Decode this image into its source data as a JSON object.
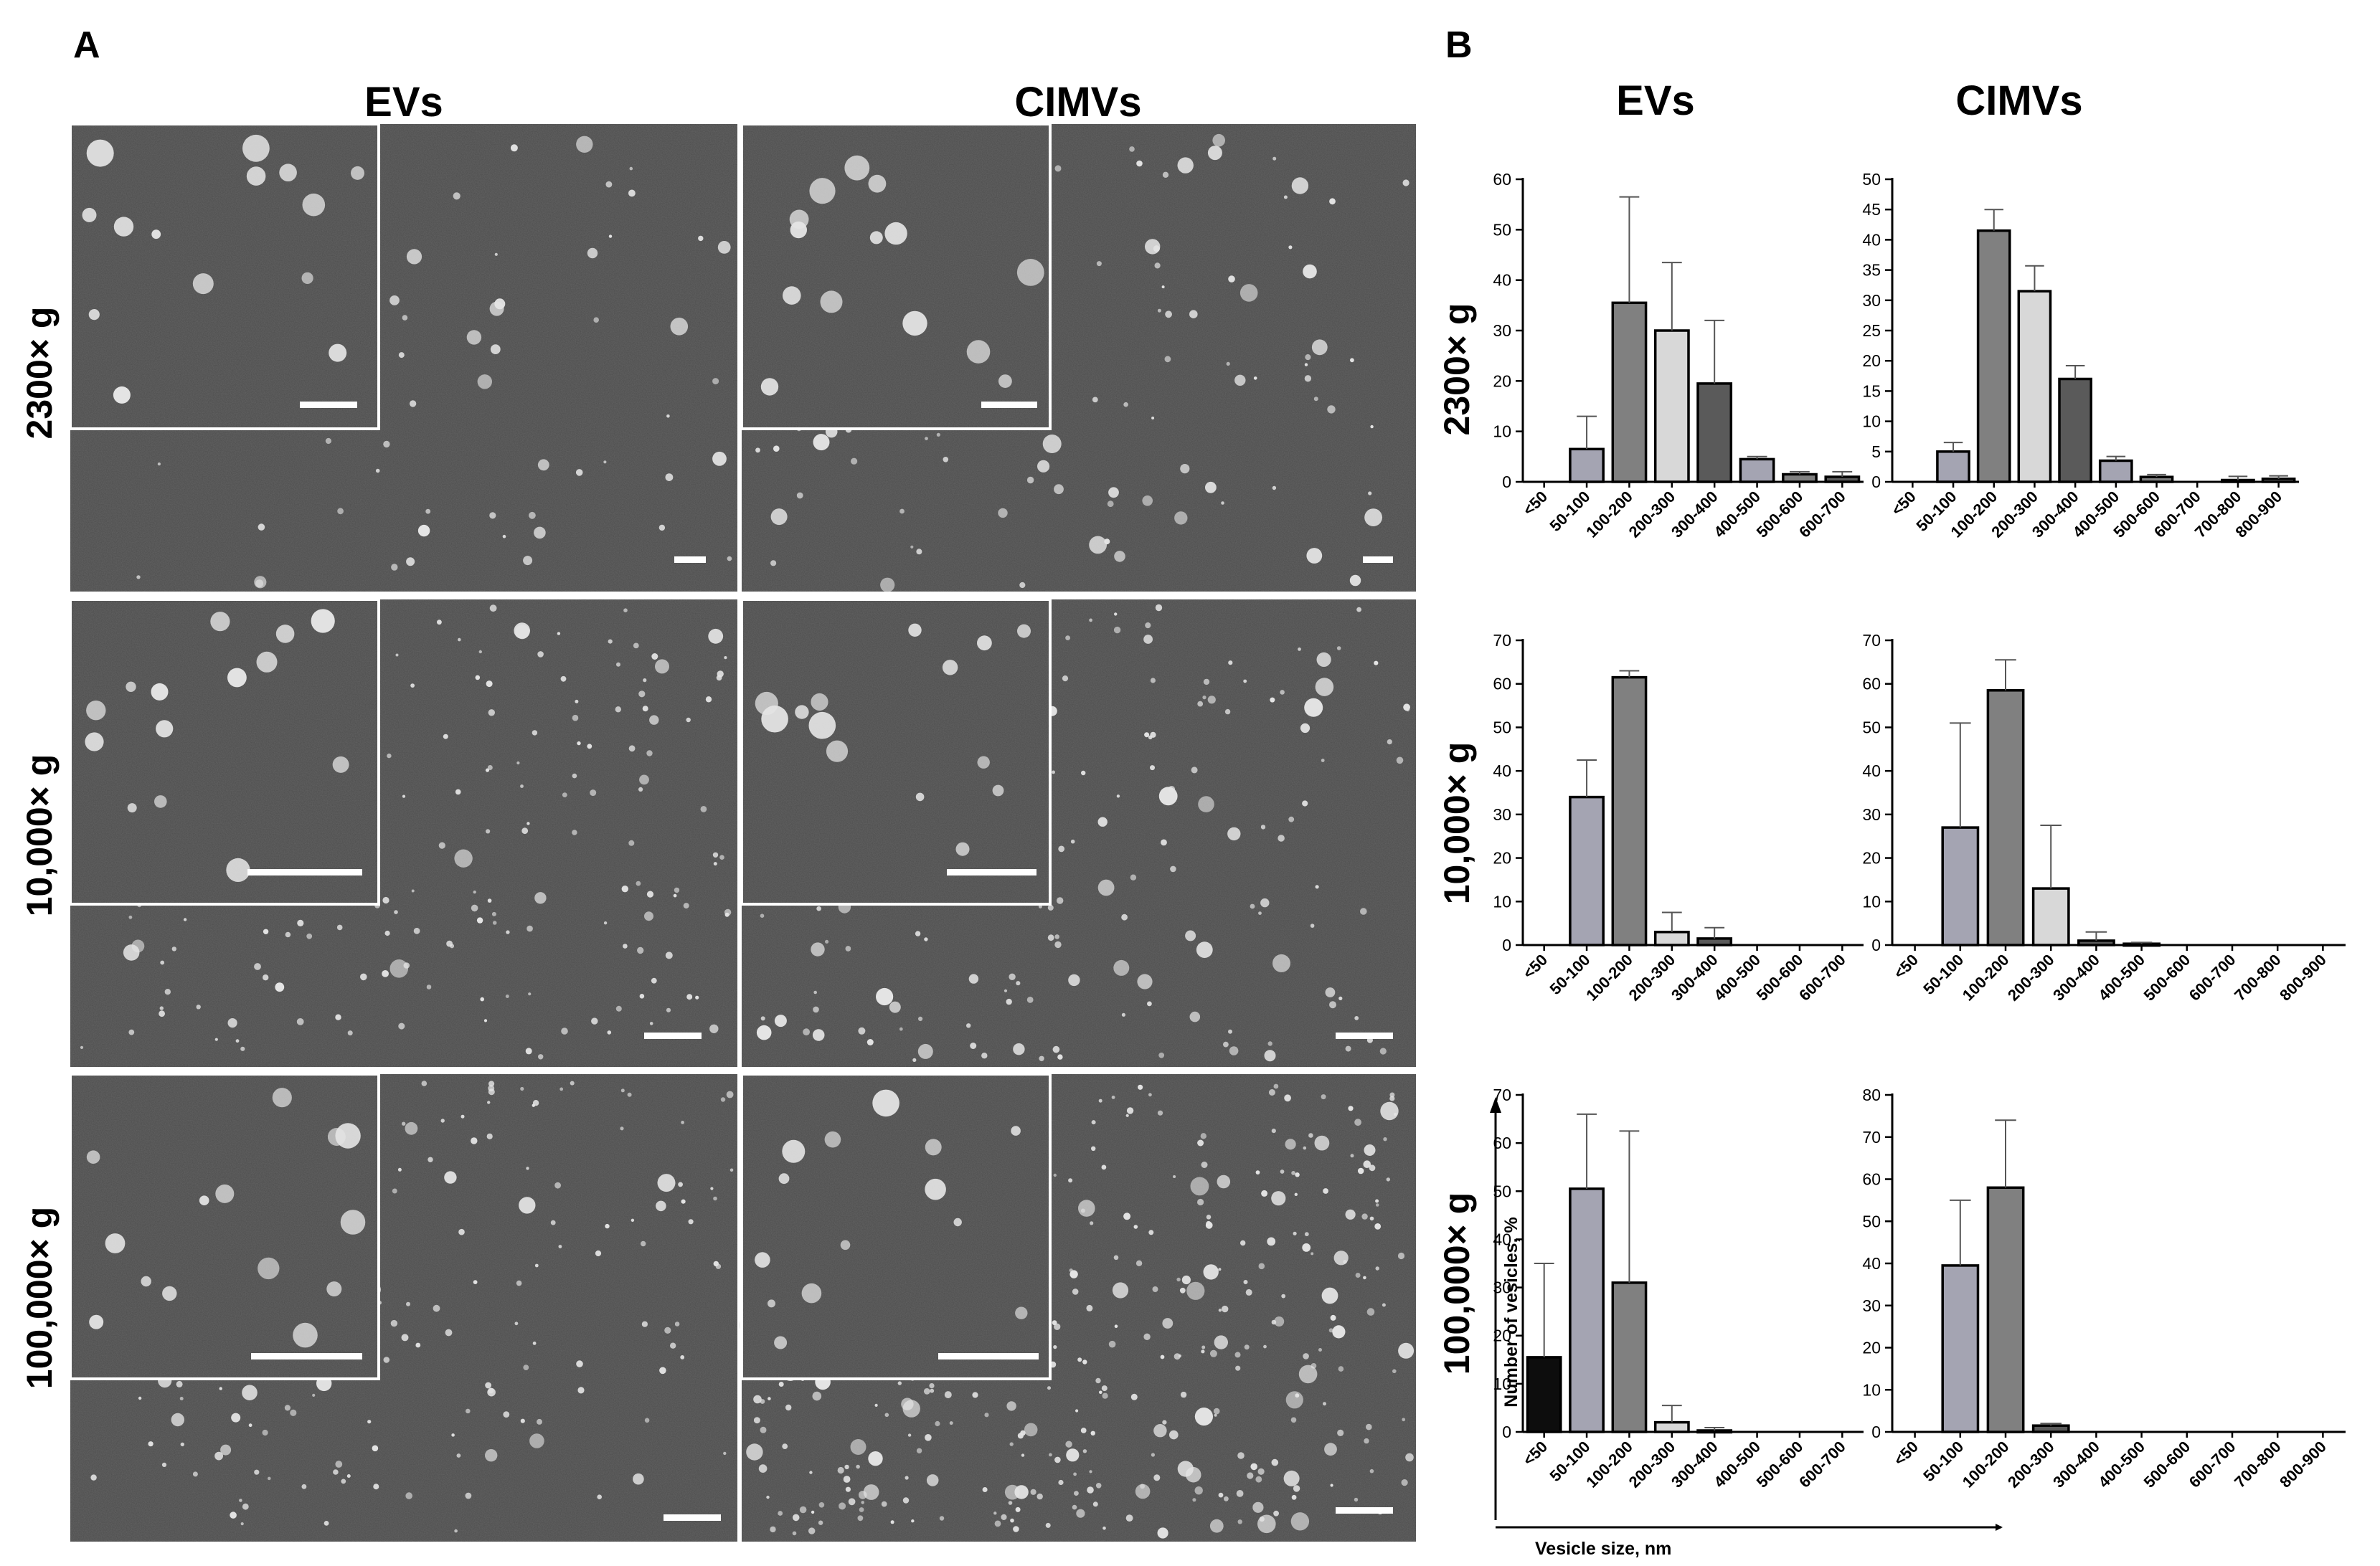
{
  "panel_letters": {
    "a": "A",
    "b": "B"
  },
  "columns": {
    "evs": "EVs",
    "cimvs": "CIMVs"
  },
  "rows": [
    "2300× g",
    "10,000× g",
    "100,000× g"
  ],
  "axis_titles": {
    "y": "Number of vesicles, %",
    "x": "Vesicle size, nm"
  },
  "colors": {
    "background": "#ffffff",
    "micrograph": "#4c4c4c",
    "particle": "#e4e4e4",
    "inset_frame": "#ffffff",
    "bar_stroke": "#000000",
    "bar_black": "#0d0d0d",
    "bar_dark": "#5a5a5a",
    "bar_mid": "#808080",
    "bar_lavender": "#a4a4b2",
    "bar_light": "#d8d8d8"
  },
  "micrographs": [
    {
      "row": "2300× g",
      "column": "EVs"
    },
    {
      "row": "2300× g",
      "column": "CIMVs"
    },
    {
      "row": "10,000× g",
      "column": "EVs"
    },
    {
      "row": "10,000× g",
      "column": "CIMVs"
    },
    {
      "row": "100,000× g",
      "column": "EVs"
    },
    {
      "row": "100,000× g",
      "column": "CIMVs"
    }
  ],
  "chart_data": [
    {
      "type": "bar",
      "row": "2300× g",
      "column": "EVs",
      "ylim": [
        0,
        60
      ],
      "yticks": [
        0,
        10,
        20,
        30,
        40,
        50,
        60
      ],
      "categories": [
        "<50",
        "50-100",
        "100-200",
        "200-300",
        "300-400",
        "400-500",
        "500-600",
        "600-700"
      ],
      "values": [
        0,
        6.5,
        35.5,
        30,
        19.5,
        4.5,
        1.5,
        1
      ],
      "errors": [
        0,
        6.5,
        21,
        13.5,
        12.5,
        0.5,
        0.5,
        1
      ],
      "colors": [
        "bar_mid",
        "bar_lavender",
        "bar_mid",
        "bar_light",
        "bar_dark",
        "bar_lavender",
        "bar_mid",
        "bar_dark"
      ],
      "grid": false
    },
    {
      "type": "bar",
      "row": "2300× g",
      "column": "CIMVs",
      "ylim": [
        0,
        50
      ],
      "yticks": [
        0,
        5,
        10,
        15,
        20,
        25,
        30,
        35,
        40,
        45,
        50
      ],
      "categories": [
        "<50",
        "50-100",
        "100-200",
        "200-300",
        "300-400",
        "400-500",
        "500-600",
        "600-700",
        "700-800",
        "800-900"
      ],
      "values": [
        0,
        5,
        41.5,
        31.5,
        17,
        3.5,
        0.8,
        0,
        0.3,
        0.5
      ],
      "errors": [
        0,
        1.5,
        3.5,
        4.2,
        2.2,
        0.7,
        0.4,
        0,
        0.6,
        0.5
      ],
      "colors": [
        "bar_mid",
        "bar_lavender",
        "bar_mid",
        "bar_light",
        "bar_dark",
        "bar_lavender",
        "bar_mid",
        "bar_dark",
        "bar_mid",
        "bar_mid"
      ],
      "grid": false
    },
    {
      "type": "bar",
      "row": "10,000× g",
      "column": "EVs",
      "ylim": [
        0,
        70
      ],
      "yticks": [
        0,
        10,
        20,
        30,
        40,
        50,
        60,
        70
      ],
      "categories": [
        "<50",
        "50-100",
        "100-200",
        "200-300",
        "300-400",
        "400-500",
        "500-600",
        "600-700"
      ],
      "values": [
        0,
        34,
        61.5,
        3,
        1.5,
        0,
        0,
        0
      ],
      "errors": [
        0,
        8.5,
        1.5,
        4.5,
        2.5,
        0,
        0,
        0
      ],
      "colors": [
        "bar_mid",
        "bar_lavender",
        "bar_mid",
        "bar_light",
        "bar_dark",
        "bar_lavender",
        "bar_mid",
        "bar_dark"
      ],
      "grid": false
    },
    {
      "type": "bar",
      "row": "10,000× g",
      "column": "CIMVs",
      "ylim": [
        0,
        70
      ],
      "yticks": [
        0,
        10,
        20,
        30,
        40,
        50,
        60,
        70
      ],
      "categories": [
        "<50",
        "50-100",
        "100-200",
        "200-300",
        "300-400",
        "400-500",
        "500-600",
        "600-700",
        "700-800",
        "800-900"
      ],
      "values": [
        0,
        27,
        58.5,
        13,
        1,
        0.3,
        0,
        0,
        0,
        0
      ],
      "errors": [
        0,
        24,
        7,
        14.5,
        2,
        0.3,
        0,
        0,
        0,
        0
      ],
      "colors": [
        "bar_mid",
        "bar_lavender",
        "bar_mid",
        "bar_light",
        "bar_dark",
        "bar_lavender",
        "bar_mid",
        "bar_dark",
        "bar_mid",
        "bar_mid"
      ],
      "grid": false
    },
    {
      "type": "bar",
      "row": "100,000× g",
      "column": "EVs",
      "ylim": [
        0,
        70
      ],
      "yticks": [
        0,
        10,
        20,
        30,
        40,
        50,
        60,
        70
      ],
      "categories": [
        "<50",
        "50-100",
        "100-200",
        "200-300",
        "300-400",
        "400-500",
        "500-600",
        "600-700"
      ],
      "values": [
        15.5,
        50.5,
        31,
        2,
        0.3,
        0,
        0,
        0
      ],
      "errors": [
        19.5,
        15.5,
        31.5,
        3.5,
        0.6,
        0,
        0,
        0
      ],
      "colors": [
        "bar_black",
        "bar_lavender",
        "bar_mid",
        "bar_light",
        "bar_dark",
        "bar_lavender",
        "bar_mid",
        "bar_dark"
      ],
      "grid": false
    },
    {
      "type": "bar",
      "row": "100,000× g",
      "column": "CIMVs",
      "ylim": [
        0,
        80
      ],
      "yticks": [
        0,
        10,
        20,
        30,
        40,
        50,
        60,
        70,
        80
      ],
      "categories": [
        "<50",
        "50-100",
        "100-200",
        "200-300",
        "300-400",
        "400-500",
        "500-600",
        "600-700",
        "700-800",
        "800-900"
      ],
      "values": [
        0,
        39.5,
        58,
        1.5,
        0,
        0,
        0,
        0,
        0,
        0
      ],
      "errors": [
        0,
        15.5,
        16,
        0.5,
        0,
        0,
        0,
        0,
        0,
        0
      ],
      "colors": [
        "bar_mid",
        "bar_lavender",
        "bar_mid",
        "bar_dark",
        "bar_dark",
        "bar_lavender",
        "bar_mid",
        "bar_dark",
        "bar_mid",
        "bar_mid"
      ],
      "grid": false
    }
  ]
}
